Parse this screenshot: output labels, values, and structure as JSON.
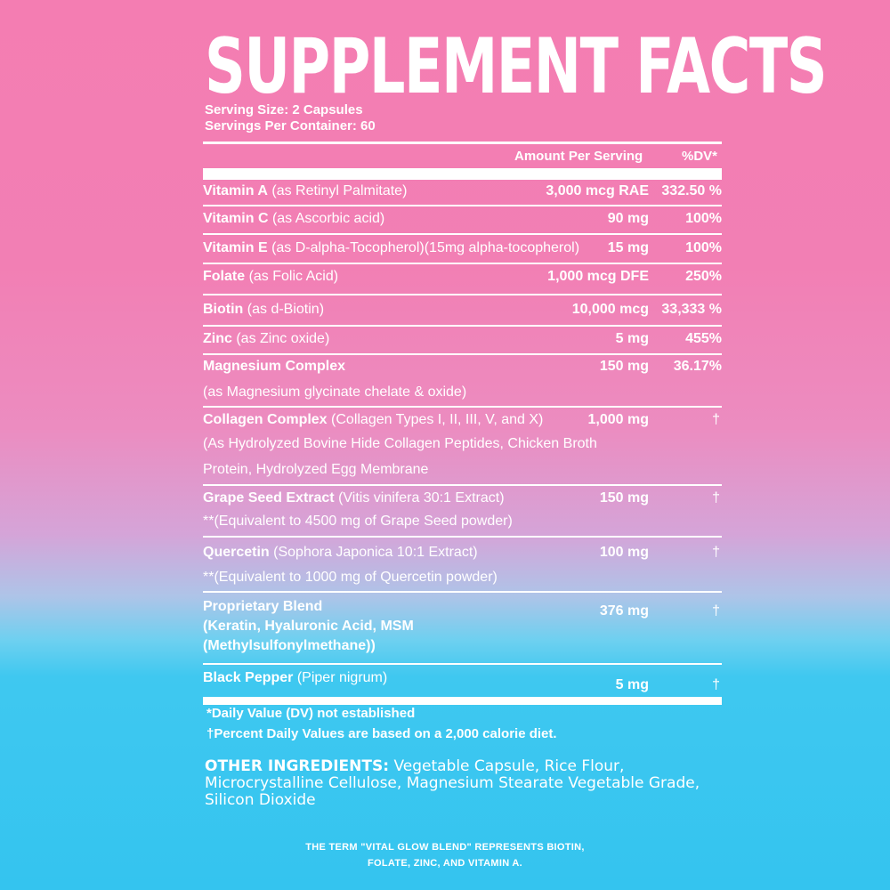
{
  "title": "SUPPLEMENT FACTS",
  "serving_size": "Serving Size: 2 Capsules",
  "servings_per_container": "Servings Per Container: 60",
  "header": {
    "amount": "Amount Per Serving",
    "dv": "%DV*"
  },
  "rows": [
    {
      "name": "Vitamin A",
      "detail": "(as Retinyl Palmitate)",
      "amount": "3,000 mcg RAE",
      "dv": "332.50 %"
    },
    {
      "name": "Vitamin C",
      "detail": "(as Ascorbic acid)",
      "amount": "90 mg",
      "dv": "100%"
    },
    {
      "name": "Vitamin E",
      "detail": "(as D-alpha-Tocopherol)(15mg alpha-tocopherol)",
      "amount": "15 mg",
      "dv": "100%"
    },
    {
      "name": "Folate",
      "detail": "(as Folic Acid)",
      "amount": "1,000 mcg DFE",
      "dv": "250%"
    },
    {
      "name": "Biotin",
      "detail": "(as d-Biotin)",
      "amount": "10,000 mcg",
      "dv": "33,333 %"
    },
    {
      "name": "Zinc",
      "detail": "(as Zinc oxide)",
      "amount": "5 mg",
      "dv": "455%"
    },
    {
      "name": "Magnesium Complex",
      "detail": "",
      "sub": [
        "(as Magnesium glycinate chelate & oxide)"
      ],
      "amount": "150 mg",
      "dv": "36.17%"
    },
    {
      "name": "Collagen Complex",
      "detail": "(Collagen Types I, II, III, V, and X)",
      "sub": [
        "(As Hydrolyzed Bovine Hide Collagen Peptides, Chicken Broth",
        "Protein, Hydrolyzed Egg Membrane"
      ],
      "amount": "1,000 mg",
      "dv": "†"
    },
    {
      "name": "Grape Seed Extract",
      "detail": "(Vitis vinifera 30:1 Extract)",
      "sub": [
        "**(Equivalent to 4500 mg of Grape Seed powder)"
      ],
      "amount": "150 mg",
      "dv": "†"
    },
    {
      "name": "Quercetin",
      "detail": "(Sophora Japonica 10:1 Extract)",
      "sub": [
        "**(Equivalent to 1000 mg of Quercetin powder)"
      ],
      "amount": "100 mg",
      "dv": "†"
    },
    {
      "name": "Proprietary Blend",
      "detail": "",
      "bsub": [
        "(Keratin, Hyaluronic Acid, MSM",
        "(Methylsulfonylmethane))"
      ],
      "amount": "376 mg",
      "dv": "†"
    },
    {
      "name": "Black Pepper",
      "detail": "(Piper nigrum)",
      "amount": "5 mg",
      "dv": "†"
    }
  ],
  "footnotes": [
    "*Daily Value (DV) not established",
    "†Percent Daily Values are based on a 2,000 calorie diet."
  ],
  "other_ingredients": {
    "label": "OTHER INGREDIENTS:",
    "text": "Vegetable Capsule, Rice Flour, Microcrystalline Cellulose, Magnesium Stearate Vegetable Grade, Silicon Dioxide"
  },
  "term_note": [
    "THE TERM \"VITAL GLOW BLEND\" REPRESENTS BIOTIN,",
    "FOLATE, ZINC, AND VITAMIN A."
  ],
  "colors": {
    "pink": "#f47db2",
    "blue": "#34c4ef",
    "text": "#ffffff"
  }
}
